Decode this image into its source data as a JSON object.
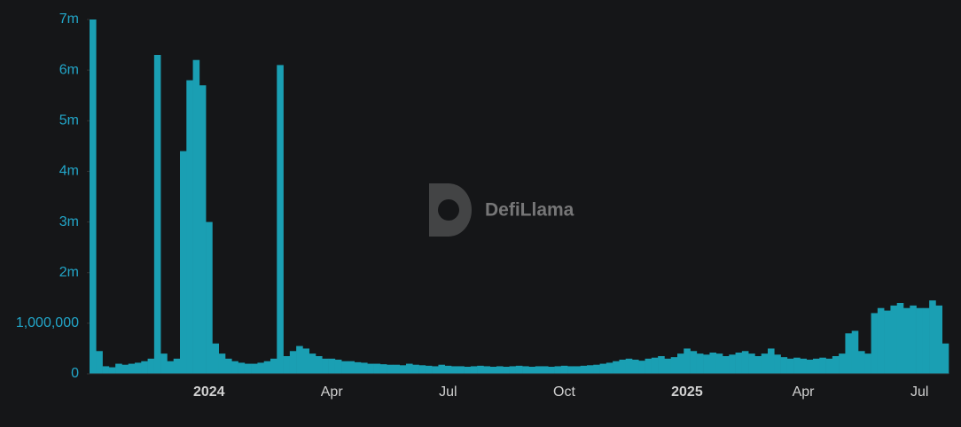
{
  "chart_data": {
    "type": "bar",
    "watermark": "DefiLlama",
    "color": "#1a9fb3",
    "categories": [
      null,
      null,
      null,
      null,
      null,
      null,
      null,
      null,
      null,
      null,
      null,
      null,
      null,
      null,
      null,
      null,
      null,
      null,
      "2024",
      null,
      null,
      null,
      null,
      null,
      null,
      null,
      null,
      null,
      null,
      null,
      null,
      null,
      null,
      null,
      null,
      null,
      null,
      "Apr",
      null,
      null,
      null,
      null,
      null,
      null,
      null,
      null,
      null,
      null,
      null,
      null,
      null,
      null,
      null,
      null,
      null,
      "Jul",
      null,
      null,
      null,
      null,
      null,
      null,
      null,
      null,
      null,
      null,
      null,
      null,
      null,
      null,
      null,
      null,
      null,
      "Oct",
      null,
      null,
      null,
      null,
      null,
      null,
      null,
      null,
      null,
      null,
      null,
      null,
      null,
      null,
      null,
      null,
      null,
      null,
      "2025",
      null,
      null,
      null,
      null,
      null,
      null,
      null,
      null,
      null,
      null,
      null,
      null,
      null,
      null,
      null,
      null,
      null,
      "Apr",
      null,
      null,
      null,
      null,
      null,
      null,
      null,
      null,
      null,
      null,
      null,
      null,
      null,
      null,
      null,
      null,
      null,
      "Jul",
      null,
      null,
      null,
      null
    ],
    "values": [
      7000000,
      450000,
      150000,
      130000,
      200000,
      180000,
      200000,
      220000,
      250000,
      300000,
      6300000,
      400000,
      250000,
      300000,
      4400000,
      5800000,
      6200000,
      5700000,
      3000000,
      600000,
      400000,
      300000,
      250000,
      220000,
      200000,
      200000,
      220000,
      250000,
      300000,
      6100000,
      350000,
      450000,
      550000,
      500000,
      400000,
      350000,
      300000,
      300000,
      280000,
      250000,
      250000,
      230000,
      220000,
      200000,
      200000,
      190000,
      180000,
      180000,
      170000,
      200000,
      180000,
      170000,
      160000,
      150000,
      180000,
      160000,
      150000,
      150000,
      140000,
      150000,
      160000,
      150000,
      140000,
      150000,
      140000,
      150000,
      160000,
      150000,
      140000,
      150000,
      150000,
      140000,
      150000,
      160000,
      150000,
      150000,
      160000,
      170000,
      180000,
      200000,
      220000,
      250000,
      280000,
      300000,
      280000,
      260000,
      300000,
      320000,
      350000,
      300000,
      330000,
      400000,
      500000,
      450000,
      400000,
      380000,
      420000,
      400000,
      350000,
      380000,
      420000,
      450000,
      400000,
      350000,
      400000,
      500000,
      380000,
      330000,
      300000,
      320000,
      300000,
      280000,
      300000,
      320000,
      300000,
      350000,
      400000,
      800000,
      850000,
      450000,
      400000,
      1200000,
      1300000,
      1250000,
      1350000,
      1400000,
      1300000,
      1350000,
      1300000,
      1300000,
      1450000,
      1350000,
      600000
    ],
    "ylim": [
      0,
      7000000
    ],
    "yticks": [
      0,
      {
        "value": 1000000,
        "label": "1,000,000"
      },
      {
        "value": 2000000,
        "label": "2m"
      },
      {
        "value": 3000000,
        "label": "3m"
      },
      {
        "value": 4000000,
        "label": "4m"
      },
      {
        "value": 5000000,
        "label": "5m"
      },
      {
        "value": 6000000,
        "label": "6m"
      },
      {
        "value": 7000000,
        "label": "7m"
      }
    ]
  }
}
